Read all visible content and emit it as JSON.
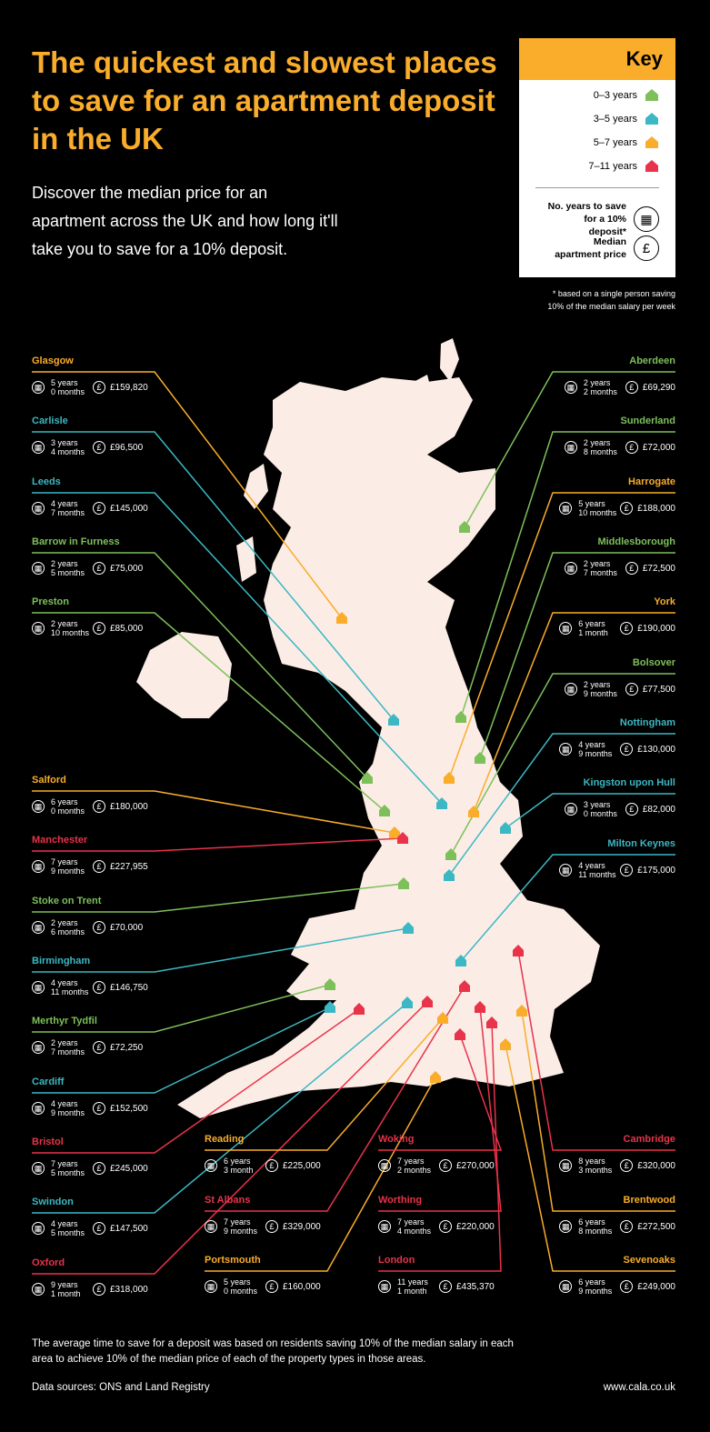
{
  "header": {
    "title": "The quickest and slowest places to save for an apartment deposit in the UK",
    "subtitle": "Discover the median price for an apartment across the UK and how long it'll take you to save for a 10% deposit."
  },
  "key": {
    "title": "Key",
    "items": [
      {
        "label": "0–3 years",
        "color": "#7dc05a"
      },
      {
        "label": "3–5 years",
        "color": "#3bb8c3"
      },
      {
        "label": "5–7 years",
        "color": "#f9ad2a"
      },
      {
        "label": "7–11 years",
        "color": "#e8334a"
      }
    ],
    "years_label": "No. years to save for a 10% deposit*",
    "price_label": "Median apartment price",
    "footnote": "* based on a single person saving 10% of the median salary per week"
  },
  "places": [
    {
      "name": "Glasgow",
      "years": "5 years",
      "months": "0 months",
      "price": "£159,820",
      "color": "#f9ad2a"
    },
    {
      "name": "Carlisle",
      "years": "3 years",
      "months": "4 months",
      "price": "£96,500",
      "color": "#3bb8c3"
    },
    {
      "name": "Leeds",
      "years": "4 years",
      "months": "7 months",
      "price": "£145,000",
      "color": "#3bb8c3"
    },
    {
      "name": "Barrow in Furness",
      "years": "2 years",
      "months": "5 months",
      "price": "£75,000",
      "color": "#7dc05a"
    },
    {
      "name": "Preston",
      "years": "2 years",
      "months": "10 months",
      "price": "£85,000",
      "color": "#7dc05a"
    },
    {
      "name": "Salford",
      "years": "6 years",
      "months": "0 months",
      "price": "£180,000",
      "color": "#f9ad2a"
    },
    {
      "name": "Manchester",
      "years": "7 years",
      "months": "9 months",
      "price": "£227,955",
      "color": "#e8334a"
    },
    {
      "name": "Stoke on Trent",
      "years": "2 years",
      "months": "6 months",
      "price": "£70,000",
      "color": "#7dc05a"
    },
    {
      "name": "Birmingham",
      "years": "4 years",
      "months": "11 months",
      "price": "£146,750",
      "color": "#3bb8c3"
    },
    {
      "name": "Merthyr Tydfil",
      "years": "2 years",
      "months": "7 months",
      "price": "£72,250",
      "color": "#7dc05a"
    },
    {
      "name": "Cardiff",
      "years": "4 years",
      "months": "9 months",
      "price": "£152,500",
      "color": "#3bb8c3"
    },
    {
      "name": "Bristol",
      "years": "7 years",
      "months": "5 months",
      "price": "£245,000",
      "color": "#e8334a"
    },
    {
      "name": "Swindon",
      "years": "4 years",
      "months": "5 months",
      "price": "£147,500",
      "color": "#3bb8c3"
    },
    {
      "name": "Oxford",
      "years": "9 years",
      "months": "1 month",
      "price": "£318,000",
      "color": "#e8334a"
    },
    {
      "name": "Aberdeen",
      "years": "2 years",
      "months": "2 months",
      "price": "£69,290",
      "color": "#7dc05a"
    },
    {
      "name": "Sunderland",
      "years": "2 years",
      "months": "8 months",
      "price": "£72,000",
      "color": "#7dc05a"
    },
    {
      "name": "Harrogate",
      "years": "5 years",
      "months": "10 months",
      "price": "£188,000",
      "color": "#f9ad2a"
    },
    {
      "name": "Middlesborough",
      "years": "2 years",
      "months": "7 months",
      "price": "£72,500",
      "color": "#7dc05a"
    },
    {
      "name": "York",
      "years": "6 years",
      "months": "1 month",
      "price": "£190,000",
      "color": "#f9ad2a"
    },
    {
      "name": "Bolsover",
      "years": "2 years",
      "months": "9 months",
      "price": "£77,500",
      "color": "#7dc05a"
    },
    {
      "name": "Nottingham",
      "years": "4 years",
      "months": "9 months",
      "price": "£130,000",
      "color": "#3bb8c3"
    },
    {
      "name": "Kingston upon Hull",
      "years": "3 years",
      "months": "0 months",
      "price": "£82,000",
      "color": "#3bb8c3"
    },
    {
      "name": "Milton Keynes",
      "years": "4 years",
      "months": "11 months",
      "price": "£175,000",
      "color": "#3bb8c3"
    },
    {
      "name": "Cambridge",
      "years": "8 years",
      "months": "3 months",
      "price": "£320,000",
      "color": "#e8334a"
    },
    {
      "name": "Brentwood",
      "years": "6 years",
      "months": "8 months",
      "price": "£272,500",
      "color": "#f9ad2a"
    },
    {
      "name": "Sevenoaks",
      "years": "6 years",
      "months": "9 months",
      "price": "£249,000",
      "color": "#f9ad2a"
    },
    {
      "name": "Reading",
      "years": "6 years",
      "months": "3 month",
      "price": "£225,000",
      "color": "#f9ad2a"
    },
    {
      "name": "St Albans",
      "years": "7 years",
      "months": "9 months",
      "price": "£329,000",
      "color": "#e8334a"
    },
    {
      "name": "Portsmouth",
      "years": "5 years",
      "months": "0 months",
      "price": "£160,000",
      "color": "#f9ad2a"
    },
    {
      "name": "Woking",
      "years": "7 years",
      "months": "2 months",
      "price": "£270,000",
      "color": "#e8334a"
    },
    {
      "name": "Worthing",
      "years": "7 years",
      "months": "4 months",
      "price": "£220,000",
      "color": "#e8334a"
    },
    {
      "name": "London",
      "years": "11 years",
      "months": "1 month",
      "price": "£435,370",
      "color": "#e8334a"
    }
  ],
  "footer": {
    "note": "The average time to save for a deposit was based on residents saving 10% of the median salary in each area to achieve 10% of the median price of each of the property types in those areas.",
    "sources": "Data sources: ONS and Land Registry",
    "url": "www.cala.co.uk"
  }
}
